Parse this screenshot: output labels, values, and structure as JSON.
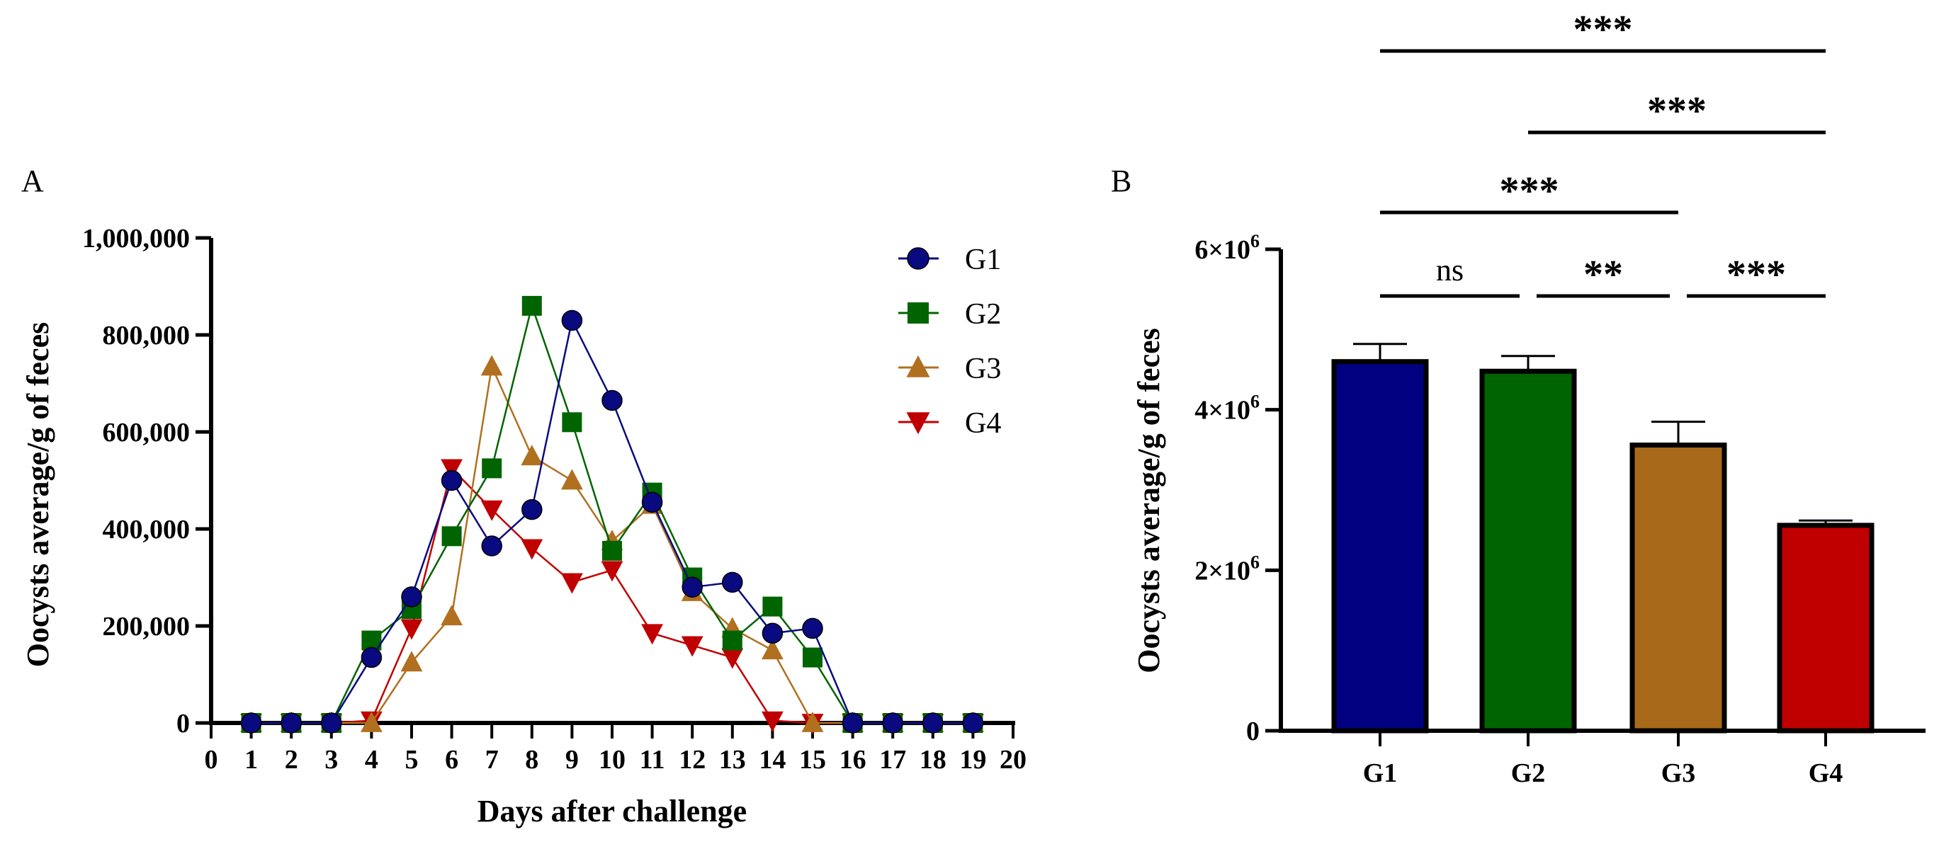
{
  "chart_data": [
    {
      "panel": "A",
      "type": "line",
      "xlabel": "Days after challenge",
      "ylabel": "Oocysts average/g of feces",
      "xlim": [
        0,
        20
      ],
      "ylim": [
        0,
        1000000
      ],
      "x_ticks": [
        "0",
        "1",
        "2",
        "3",
        "4",
        "5",
        "6",
        "7",
        "8",
        "9",
        "10",
        "11",
        "12",
        "13",
        "14",
        "15",
        "16",
        "17",
        "18",
        "19",
        "20"
      ],
      "y_ticks": [
        {
          "value": 0,
          "label": "0"
        },
        {
          "value": 200000,
          "label": "200,000"
        },
        {
          "value": 400000,
          "label": "400,000"
        },
        {
          "value": 600000,
          "label": "600,000"
        },
        {
          "value": 800000,
          "label": "800,000"
        },
        {
          "value": 1000000,
          "label": "1,000,000"
        }
      ],
      "legend_position": "top-right",
      "x": [
        1,
        2,
        3,
        4,
        5,
        6,
        7,
        8,
        9,
        10,
        11,
        12,
        13,
        14,
        15,
        16,
        17,
        18,
        19
      ],
      "series": [
        {
          "name": "G4",
          "color": "#c00000",
          "marker": "triangle-down",
          "values": [
            0,
            0,
            0,
            5000,
            195000,
            525000,
            440000,
            360000,
            290000,
            315000,
            185000,
            160000,
            135000,
            5000,
            0,
            0,
            0,
            0,
            0
          ]
        },
        {
          "name": "G3",
          "color": "#b07020",
          "marker": "triangle-up",
          "values": [
            0,
            0,
            0,
            0,
            125000,
            220000,
            735000,
            550000,
            500000,
            375000,
            450000,
            270000,
            195000,
            150000,
            0,
            0,
            0,
            0,
            0
          ]
        },
        {
          "name": "G2",
          "color": "#006400",
          "marker": "square",
          "values": [
            0,
            0,
            0,
            170000,
            235000,
            385000,
            525000,
            860000,
            620000,
            355000,
            475000,
            300000,
            170000,
            240000,
            135000,
            0,
            0,
            0,
            0
          ]
        },
        {
          "name": "G1",
          "color": "#0a0a80",
          "marker": "circle",
          "values": [
            0,
            0,
            0,
            135000,
            260000,
            500000,
            365000,
            440000,
            830000,
            665000,
            455000,
            280000,
            290000,
            185000,
            195000,
            0,
            0,
            0,
            0
          ]
        }
      ],
      "legend_order": [
        "G1",
        "G2",
        "G3",
        "G4"
      ]
    },
    {
      "panel": "B",
      "type": "bar",
      "ylabel": "Oocysts average/g of feces",
      "ylim": [
        0,
        6000000
      ],
      "categories": [
        "G1",
        "G2",
        "G3",
        "G4"
      ],
      "values": [
        4600000,
        4480000,
        3560000,
        2560000
      ],
      "errors": [
        220000,
        190000,
        290000,
        60000
      ],
      "colors": [
        "#000080",
        "#006400",
        "#a86a1a",
        "#c00000"
      ],
      "y_ticks": [
        {
          "value": 0,
          "label": "0",
          "exp": ""
        },
        {
          "value": 2000000,
          "label": "2×10",
          "exp": "6"
        },
        {
          "value": 4000000,
          "label": "4×10",
          "exp": "6"
        },
        {
          "value": 6000000,
          "label": "6×10",
          "exp": "6"
        }
      ],
      "significance": [
        {
          "from": "G1",
          "to": "G2",
          "label": "ns"
        },
        {
          "from": "G2",
          "to": "G3",
          "label": "**"
        },
        {
          "from": "G3",
          "to": "G4",
          "label": "***"
        },
        {
          "from": "G1",
          "to": "G3",
          "label": "***"
        },
        {
          "from": "G2",
          "to": "G4",
          "label": "***"
        },
        {
          "from": "G1",
          "to": "G4",
          "label": "***"
        }
      ]
    }
  ]
}
